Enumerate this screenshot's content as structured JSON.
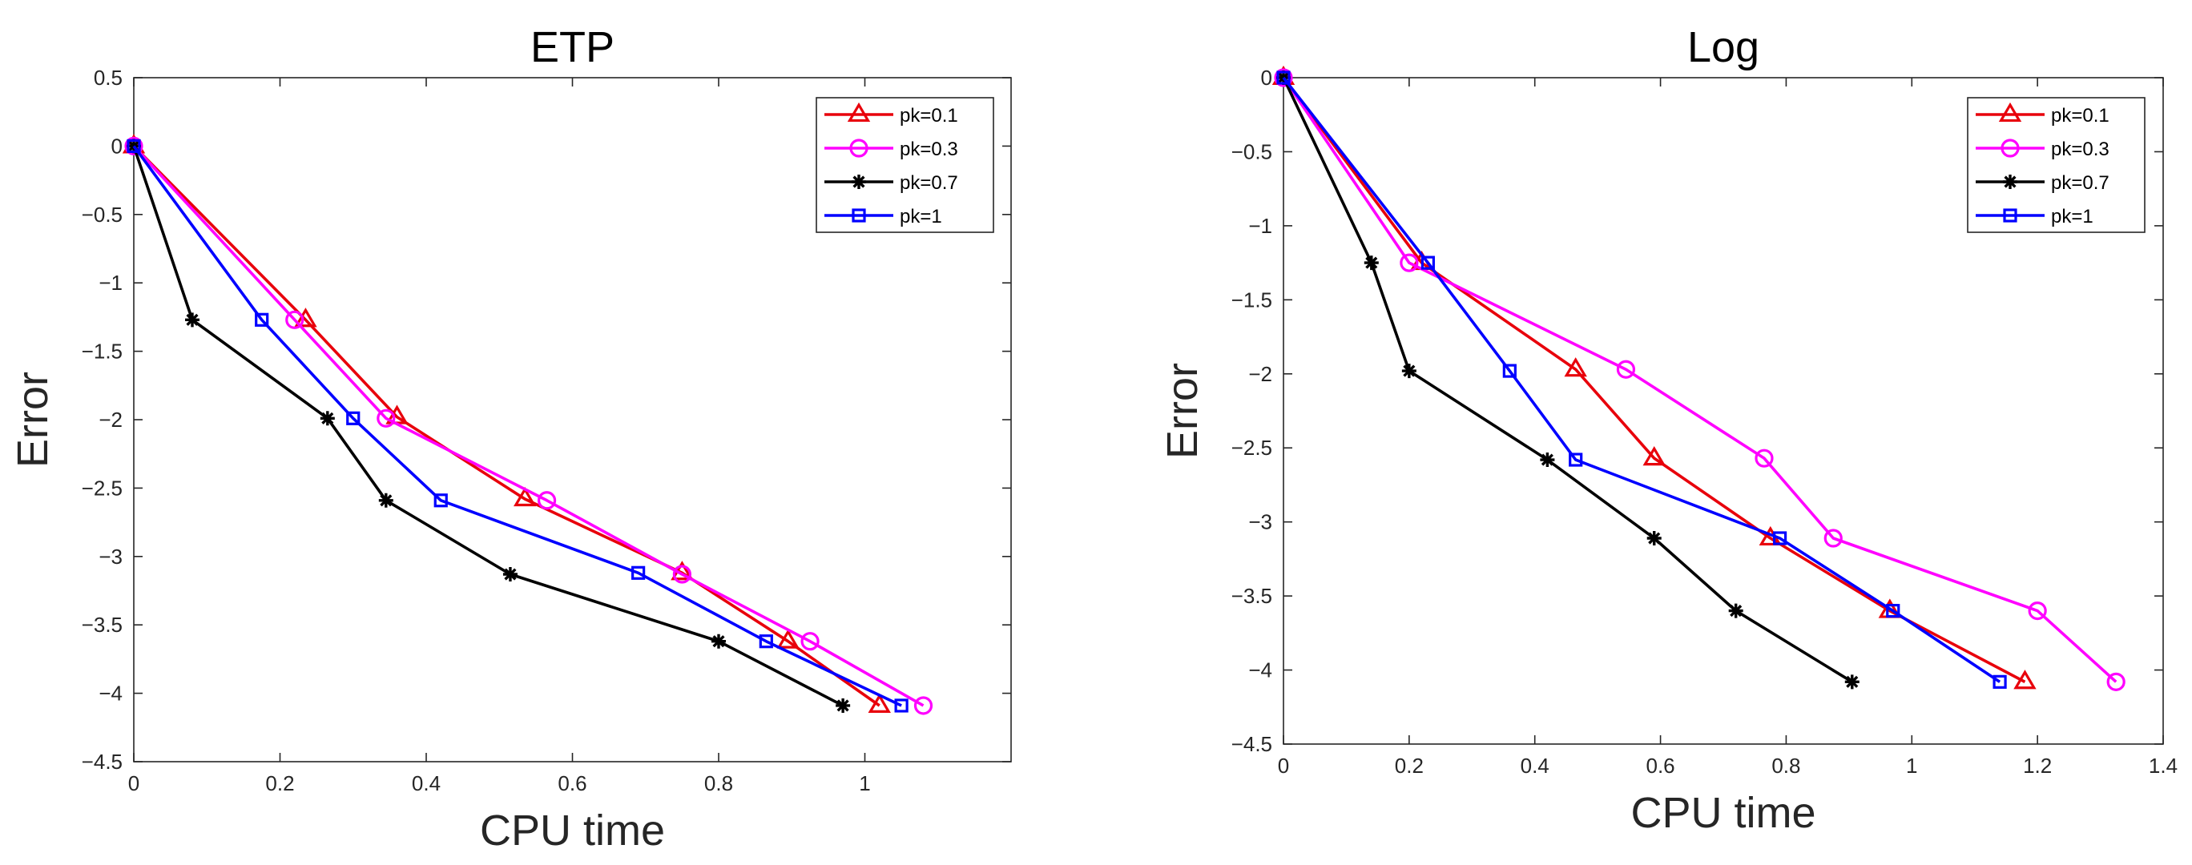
{
  "chart_data": [
    {
      "type": "line",
      "title": "ETP",
      "xlabel": "CPU time",
      "ylabel": "Error",
      "xlim": [
        0,
        1.2
      ],
      "ylim": [
        -4.5,
        0.5
      ],
      "xticks": [
        0,
        0.2,
        0.4,
        0.6,
        0.8,
        1
      ],
      "xtick_labels": [
        "0",
        "0.2",
        "0.4",
        "0.6",
        "0.8",
        "1"
      ],
      "yticks": [
        0.5,
        0,
        -0.5,
        -1,
        -1.5,
        -2,
        -2.5,
        -3,
        -3.5,
        -4,
        -4.5
      ],
      "ytick_labels": [
        "0.5",
        "0",
        "−0.5",
        "−1",
        "−1.5",
        "−2",
        "−2.5",
        "−3",
        "−3.5",
        "−4",
        "−4.5"
      ],
      "grid": false,
      "legend_position": "top-right",
      "series": [
        {
          "name": "pk=0.1",
          "color": "#e8000b",
          "marker": "triangle",
          "x": [
            0,
            0.235,
            0.36,
            0.535,
            0.75,
            0.895,
            1.02
          ],
          "y": [
            0,
            -1.27,
            -1.98,
            -2.58,
            -3.12,
            -3.62,
            -4.09
          ]
        },
        {
          "name": "pk=0.3",
          "color": "#ff00ff",
          "marker": "circle",
          "x": [
            0,
            0.22,
            0.345,
            0.565,
            0.75,
            0.925,
            1.08
          ],
          "y": [
            0,
            -1.27,
            -1.99,
            -2.59,
            -3.13,
            -3.62,
            -4.09
          ]
        },
        {
          "name": "pk=0.7",
          "color": "#000000",
          "marker": "asterisk",
          "x": [
            0,
            0.08,
            0.265,
            0.345,
            0.515,
            0.8,
            0.97
          ],
          "y": [
            0,
            -1.27,
            -1.99,
            -2.59,
            -3.13,
            -3.62,
            -4.09
          ]
        },
        {
          "name": "pk=1",
          "color": "#0000ff",
          "marker": "square",
          "x": [
            0,
            0.175,
            0.3,
            0.42,
            0.69,
            0.865,
            1.05
          ],
          "y": [
            0,
            -1.27,
            -1.99,
            -2.59,
            -3.12,
            -3.62,
            -4.09
          ]
        }
      ]
    },
    {
      "type": "line",
      "title": "Log",
      "xlabel": "CPU time",
      "ylabel": "Error",
      "xlim": [
        0,
        1.4
      ],
      "ylim": [
        -4.5,
        0
      ],
      "xticks": [
        0,
        0.2,
        0.4,
        0.6,
        0.8,
        1,
        1.2,
        1.4
      ],
      "xtick_labels": [
        "0",
        "0.2",
        "0.4",
        "0.6",
        "0.8",
        "1",
        "1.2",
        "1.4"
      ],
      "yticks": [
        0,
        -0.5,
        -1,
        -1.5,
        -2,
        -2.5,
        -3,
        -3.5,
        -4,
        -4.5
      ],
      "ytick_labels": [
        "0",
        "−0.5",
        "−1",
        "−1.5",
        "−2",
        "−2.5",
        "−3",
        "−3.5",
        "−4",
        "−4.5"
      ],
      "grid": false,
      "legend_position": "top-right",
      "series": [
        {
          "name": "pk=0.1",
          "color": "#e8000b",
          "marker": "triangle",
          "x": [
            0,
            0.22,
            0.465,
            0.59,
            0.775,
            0.965,
            1.18
          ],
          "y": [
            0,
            -1.25,
            -1.97,
            -2.57,
            -3.11,
            -3.6,
            -4.08
          ]
        },
        {
          "name": "pk=0.3",
          "color": "#ff00ff",
          "marker": "circle",
          "x": [
            0,
            0.2,
            0.545,
            0.765,
            0.875,
            1.2,
            1.325
          ],
          "y": [
            0,
            -1.25,
            -1.97,
            -2.57,
            -3.11,
            -3.6,
            -4.08
          ]
        },
        {
          "name": "pk=0.7",
          "color": "#000000",
          "marker": "asterisk",
          "x": [
            0,
            0.14,
            0.2,
            0.42,
            0.59,
            0.72,
            0.905
          ],
          "y": [
            0,
            -1.25,
            -1.98,
            -2.58,
            -3.11,
            -3.6,
            -4.08
          ]
        },
        {
          "name": "pk=1",
          "color": "#0000ff",
          "marker": "square",
          "x": [
            0,
            0.23,
            0.36,
            0.465,
            0.79,
            0.97,
            1.14
          ],
          "y": [
            0,
            -1.25,
            -1.98,
            -2.58,
            -3.11,
            -3.6,
            -4.08
          ]
        }
      ]
    }
  ]
}
